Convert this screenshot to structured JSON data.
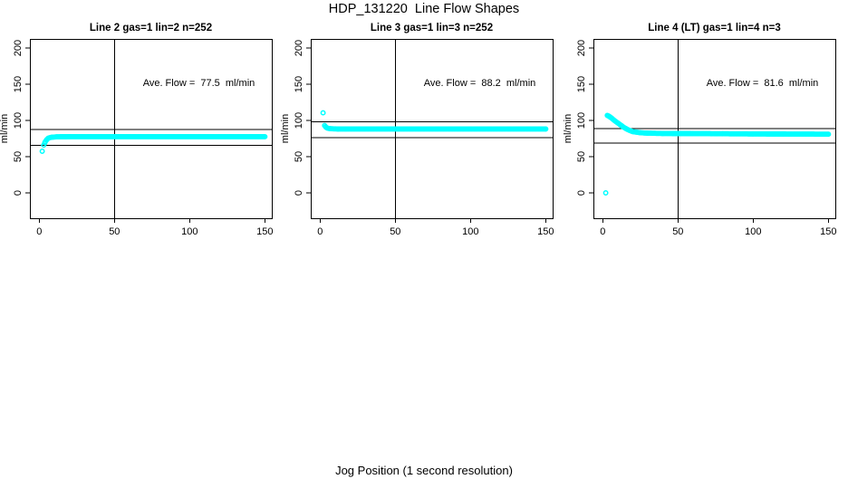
{
  "page": {
    "title": "HDP_131220  Line Flow Shapes",
    "xlabel": "Jog Position (1 second resolution)",
    "background_color": "#ffffff",
    "text_color": "#000000"
  },
  "chart_data": {
    "type": "scatter",
    "point_color": "#00ffff",
    "line_color": "#000000",
    "ylabel": "ml/min",
    "x_ticks": [
      0,
      50,
      100,
      150
    ],
    "y_ticks": [
      0,
      50,
      100,
      150,
      200
    ],
    "xlim": [
      -6,
      155
    ],
    "ylim": [
      -35,
      212
    ],
    "vline_x": 50,
    "grid": "off",
    "legend": "none",
    "panels": [
      {
        "title": "Line 2 gas=1 lin=2 n=252",
        "annotation": "Ave. Flow =  77.5  ml/min",
        "ave_flow_ml_min": 77.5,
        "ref_lines": [
          87.5,
          65.5
        ],
        "outlier_points": [
          [
            2,
            57.5
          ]
        ],
        "band_anchors": [
          [
            3,
            66
          ],
          [
            4,
            70.5
          ],
          [
            5,
            73.5
          ],
          [
            6,
            75.5
          ],
          [
            8,
            76.8
          ],
          [
            12,
            77.4
          ],
          [
            20,
            77.6
          ],
          [
            150,
            77.6
          ]
        ],
        "band_x_end": 150
      },
      {
        "title": "Line 3 gas=1 lin=3 n=252",
        "annotation": "Ave. Flow =  88.2  ml/min",
        "ave_flow_ml_min": 88.2,
        "ref_lines": [
          98,
          76.5
        ],
        "outlier_points": [
          [
            2,
            110.5
          ]
        ],
        "band_anchors": [
          [
            3,
            93
          ],
          [
            4,
            90.5
          ],
          [
            5,
            89.3
          ],
          [
            7,
            88.6
          ],
          [
            12,
            88.2
          ],
          [
            150,
            88.2
          ]
        ],
        "band_x_end": 150
      },
      {
        "title": "Line 4 (LT) gas=1 lin=4 n=3",
        "annotation": "Ave. Flow =  81.6  ml/min",
        "ave_flow_ml_min": 81.6,
        "ref_lines": [
          89,
          69
        ],
        "outlier_points": [
          [
            2,
            0
          ]
        ],
        "band_anchors": [
          [
            3,
            107
          ],
          [
            4,
            106
          ],
          [
            5,
            104.5
          ],
          [
            6,
            103
          ],
          [
            8,
            99.5
          ],
          [
            10,
            96.5
          ],
          [
            12,
            93.5
          ],
          [
            14,
            90.5
          ],
          [
            16,
            88
          ],
          [
            18,
            86
          ],
          [
            20,
            84.5
          ],
          [
            25,
            83
          ],
          [
            30,
            82.4
          ],
          [
            40,
            82
          ],
          [
            60,
            81.8
          ],
          [
            80,
            81.6
          ],
          [
            100,
            81.4
          ],
          [
            120,
            81.2
          ],
          [
            150,
            81
          ]
        ],
        "band_x_end": 150
      }
    ]
  }
}
